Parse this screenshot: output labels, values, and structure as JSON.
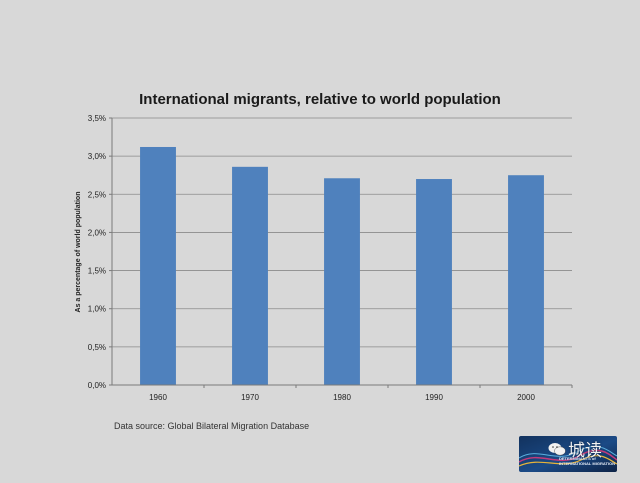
{
  "chart_data": {
    "type": "bar",
    "title": "International migrants, relative to world population",
    "ylabel": "As a percentage of world population",
    "xlabel": "",
    "categories": [
      "1960",
      "1970",
      "1980",
      "1990",
      "2000"
    ],
    "values": [
      3.12,
      2.86,
      2.71,
      2.7,
      2.75
    ],
    "ylim": [
      0,
      3.5
    ],
    "yticks": [
      "0,0%",
      "0,5%",
      "1,0%",
      "1,5%",
      "2,0%",
      "2,5%",
      "3,0%",
      "3,5%"
    ],
    "grid": true,
    "bar_color": "#4f81bd"
  },
  "source_text": "Data source: Global Bilateral Migration Database",
  "logo": {
    "text_line1": "DETERMINANTS of",
    "text_line2": "INTERNATIONAL MIGRATION"
  },
  "watermark": {
    "text": "城读",
    "icon": "wechat-icon"
  }
}
